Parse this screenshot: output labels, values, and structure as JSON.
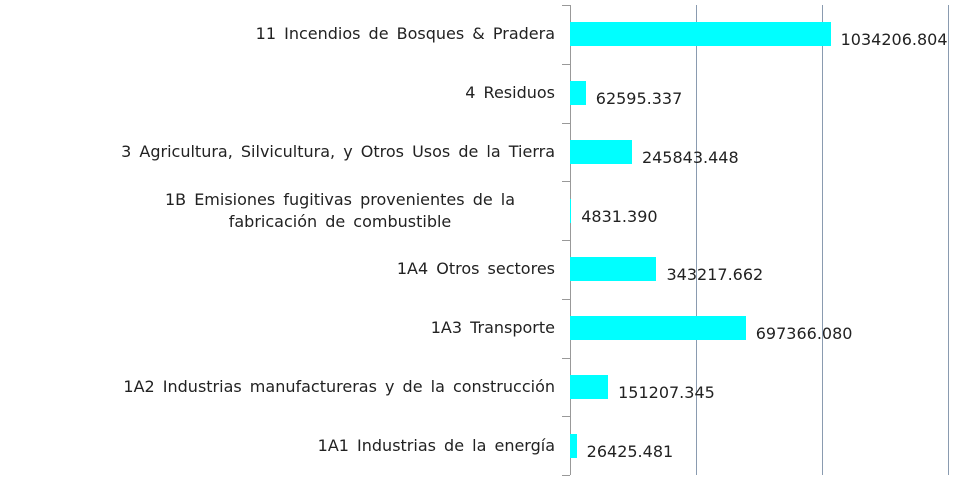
{
  "chart_data": {
    "type": "bar",
    "orientation": "horizontal",
    "categories": [
      "11 Incendios de Bosques & Pradera",
      "4 Residuos",
      "3 Agricultura, Silvicultura, y Otros Usos de la Tierra",
      "1B Emisiones fugitivas provenientes de la fabricación de combustible",
      "1A4 Otros sectores",
      "1A3 Transporte",
      "1A2 Industrias manufactureras y de la construcción",
      "1A1 Industrias de la energía"
    ],
    "values": [
      1034206.804,
      62595.337,
      245843.448,
      4831.39,
      343217.662,
      697366.08,
      151207.345,
      26425.481
    ],
    "value_labels": [
      "1034206.804",
      "62595.337",
      "245843.448",
      "4831.390",
      "343217.662",
      "697366.080",
      "151207.345",
      "26425.481"
    ],
    "color": "#00ffff",
    "xlim": [
      0,
      1500000
    ],
    "xticks": [
      0,
      500000,
      1000000,
      1500000
    ],
    "grid": true
  }
}
